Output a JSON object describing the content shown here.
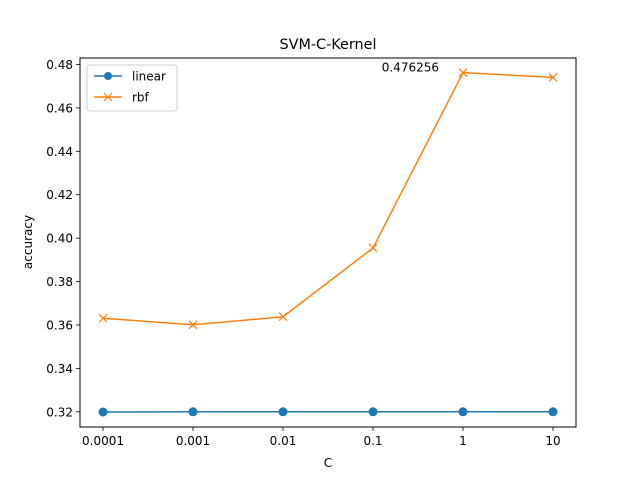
{
  "chart_data": {
    "type": "line",
    "title": "SVM-C-Kernel",
    "xlabel": "C",
    "ylabel": "accuracy",
    "categories": [
      "0.0001",
      "0.001",
      "0.01",
      "0.1",
      "1",
      "10"
    ],
    "ylim": [
      0.313,
      0.483
    ],
    "yticks": [
      "0.32",
      "0.34",
      "0.36",
      "0.38",
      "0.40",
      "0.42",
      "0.44",
      "0.46",
      "0.48"
    ],
    "grid": false,
    "legend_position": "top-left",
    "series": [
      {
        "name": "linear",
        "color": "#1f77b4",
        "marker": "circle",
        "values": [
          0.3199,
          0.32,
          0.32,
          0.32,
          0.32,
          0.32
        ]
      },
      {
        "name": "rbf",
        "color": "#ff7f0e",
        "marker": "x",
        "values": [
          0.3631,
          0.3601,
          0.3638,
          0.3955,
          0.476256,
          0.4741
        ]
      }
    ],
    "annotations": [
      {
        "text": "0.476256",
        "x": "1",
        "y": 0.476256
      }
    ]
  }
}
